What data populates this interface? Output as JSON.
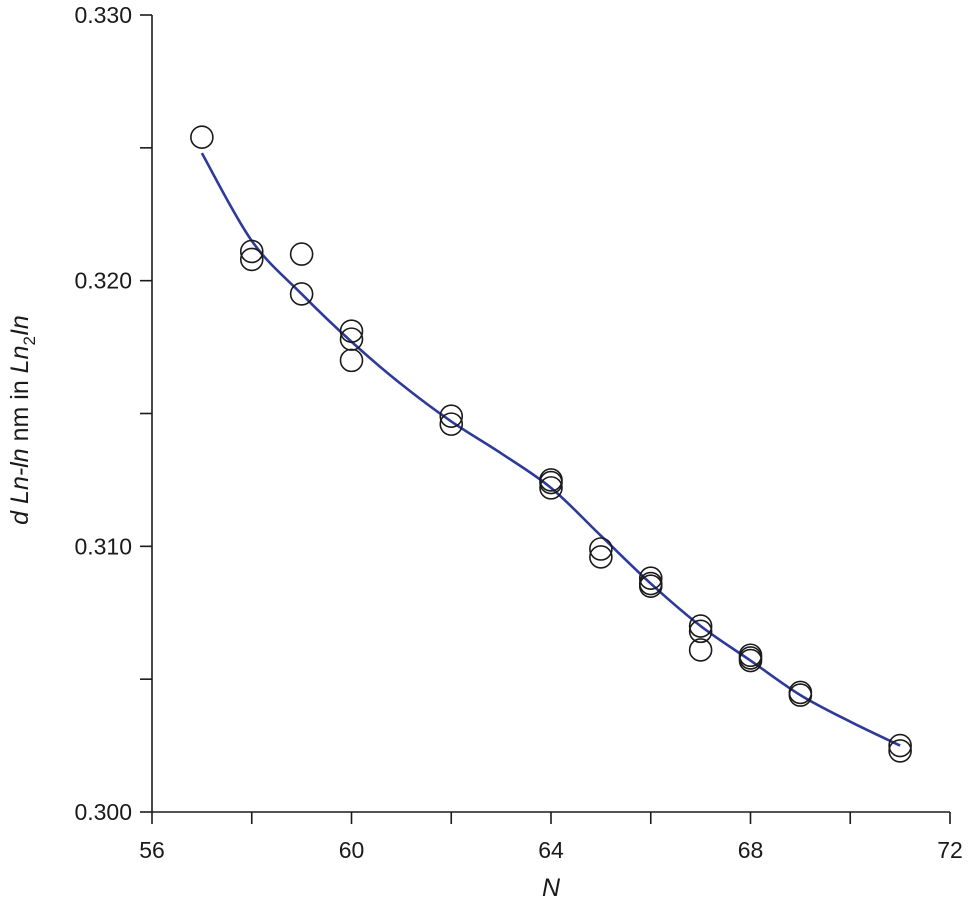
{
  "chart_data": {
    "type": "scatter",
    "title": "",
    "xlabel": "N",
    "ylabel": {
      "prefix": "d ",
      "ln_in": "Ln-ln",
      "middle": " nm in ",
      "ln": "Ln",
      "sub": "2",
      "in": "In"
    },
    "xlim": [
      56,
      72
    ],
    "ylim": [
      0.3,
      0.33
    ],
    "x_tick_labels": [
      "56",
      "60",
      "64",
      "68",
      "72"
    ],
    "x_tick_values": [
      56,
      60,
      64,
      68,
      72
    ],
    "x_minor_ticks": [
      58,
      62,
      66,
      70
    ],
    "y_tick_labels": [
      "0.300",
      "0.310",
      "0.320",
      "0.330"
    ],
    "y_tick_values": [
      0.3,
      0.31,
      0.32,
      0.33
    ],
    "y_minor_ticks": [
      0.305,
      0.315,
      0.325
    ],
    "grid": false,
    "series": [
      {
        "kind": "points",
        "marker": "open-circle",
        "color": "#1a1a1a",
        "x": [
          57,
          58,
          58,
          59,
          59,
          60,
          60,
          60,
          62,
          62,
          64,
          64,
          64,
          65,
          65,
          66,
          66,
          66,
          67,
          67,
          67,
          68,
          68,
          68,
          69,
          69,
          71,
          71
        ],
        "y": [
          0.3254,
          0.3211,
          0.3208,
          0.321,
          0.3195,
          0.3181,
          0.3178,
          0.317,
          0.3149,
          0.3146,
          0.3125,
          0.3124,
          0.3122,
          0.3099,
          0.3096,
          0.3088,
          0.3086,
          0.3085,
          0.307,
          0.3068,
          0.3061,
          0.3059,
          0.3058,
          0.3057,
          0.3045,
          0.3044,
          0.3025,
          0.3023
        ]
      },
      {
        "kind": "line",
        "color": "#2d3a9a",
        "x": [
          57,
          58,
          59,
          60,
          61,
          62,
          63,
          64,
          65,
          66,
          67,
          68,
          69,
          70,
          71
        ],
        "y": [
          0.3248,
          0.3215,
          0.3195,
          0.3177,
          0.3161,
          0.3147,
          0.3135,
          0.3122,
          0.3104,
          0.3086,
          0.307,
          0.3057,
          0.3044,
          0.3034,
          0.3025
        ]
      }
    ]
  }
}
